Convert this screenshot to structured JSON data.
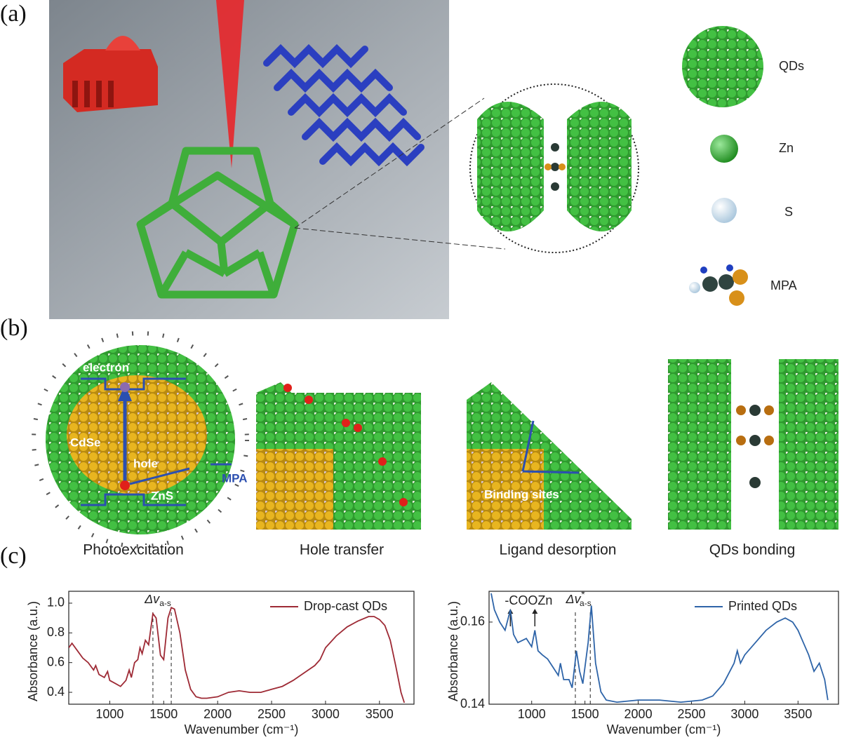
{
  "panel_labels": [
    "(a)",
    "(b)",
    "(c)"
  ],
  "panel_a": {
    "legend": [
      "QDs",
      "Zn",
      "S",
      "MPA"
    ]
  },
  "panel_b": {
    "labels": {
      "electron": "electron",
      "core": "CdSe",
      "hole": "hole",
      "ligand": "MPA",
      "shell": "ZnS",
      "sites": "Binding sites"
    },
    "captions": [
      "Photoexcitation",
      "Hole transfer",
      "Ligand desorption",
      "QDs bonding"
    ]
  },
  "chart_data": [
    {
      "type": "line",
      "xlabel": "Wavenumber (cm⁻¹)",
      "ylabel": "Absorbance (a.u.)",
      "xlim": [
        620,
        3820
      ],
      "ylim": [
        0.32,
        1.08
      ],
      "xticks": [
        1000,
        1500,
        2000,
        2500,
        3000,
        3500
      ],
      "yticks": [
        0.4,
        0.6,
        0.8,
        {
          "value": 1,
          "label": "1.0"
        }
      ],
      "legend": "upper right",
      "annotation": {
        "text": "Δv",
        "sub": "a-s"
      },
      "markers": [
        1400,
        1570
      ],
      "x": [
        620,
        650,
        700,
        750,
        800,
        850,
        870,
        900,
        950,
        980,
        1000,
        1050,
        1100,
        1150,
        1180,
        1200,
        1230,
        1260,
        1280,
        1300,
        1330,
        1360,
        1400,
        1430,
        1470,
        1500,
        1540,
        1570,
        1600,
        1650,
        1700,
        1750,
        1800,
        1850,
        1900,
        2000,
        2100,
        2200,
        2300,
        2400,
        2500,
        2600,
        2700,
        2800,
        2900,
        2950,
        3000,
        3100,
        3200,
        3300,
        3400,
        3450,
        3500,
        3550,
        3600,
        3650,
        3700,
        3730
      ],
      "series": [
        {
          "name": "Drop-cast QDs",
          "color": "#9e2a35",
          "values": [
            0.7,
            0.73,
            0.68,
            0.63,
            0.6,
            0.55,
            0.58,
            0.52,
            0.5,
            0.54,
            0.48,
            0.46,
            0.44,
            0.48,
            0.55,
            0.5,
            0.6,
            0.62,
            0.7,
            0.66,
            0.75,
            0.72,
            0.93,
            0.9,
            0.65,
            0.62,
            0.9,
            0.97,
            0.96,
            0.8,
            0.55,
            0.42,
            0.37,
            0.36,
            0.36,
            0.37,
            0.4,
            0.41,
            0.4,
            0.4,
            0.42,
            0.44,
            0.48,
            0.53,
            0.58,
            0.62,
            0.7,
            0.78,
            0.84,
            0.88,
            0.91,
            0.91,
            0.89,
            0.85,
            0.75,
            0.58,
            0.4,
            0.33
          ]
        }
      ]
    },
    {
      "type": "line",
      "xlabel": "Wavenumber (cm⁻¹)",
      "ylabel": "Absorbance (a.u.)",
      "xlim": [
        600,
        3880
      ],
      "ylim": [
        0.14,
        0.1675
      ],
      "xticks": [
        1000,
        1500,
        2000,
        2500,
        3000,
        3500
      ],
      "yticks": [
        0.14,
        0.16
      ],
      "legend": "upper right",
      "annotation": {
        "text": "Δv",
        "sup": "*",
        "sub": "a-s"
      },
      "arrow_text": "-COOZn",
      "arrows": [
        800,
        1030
      ],
      "markers": [
        1410,
        1550
      ],
      "x": [
        620,
        650,
        700,
        750,
        800,
        830,
        870,
        950,
        1000,
        1030,
        1060,
        1100,
        1150,
        1200,
        1250,
        1270,
        1300,
        1350,
        1380,
        1420,
        1450,
        1480,
        1530,
        1560,
        1600,
        1650,
        1700,
        1800,
        2000,
        2200,
        2400,
        2600,
        2700,
        2800,
        2900,
        2930,
        2960,
        3000,
        3100,
        3200,
        3300,
        3380,
        3450,
        3500,
        3550,
        3600,
        3650,
        3700,
        3750,
        3780
      ],
      "series": [
        {
          "name": "Printed QDs",
          "color": "#2e64a8",
          "values": [
            0.167,
            0.163,
            0.16,
            0.158,
            0.163,
            0.157,
            0.155,
            0.156,
            0.154,
            0.158,
            0.153,
            0.152,
            0.151,
            0.149,
            0.147,
            0.15,
            0.146,
            0.146,
            0.144,
            0.153,
            0.148,
            0.145,
            0.155,
            0.164,
            0.15,
            0.143,
            0.141,
            0.1405,
            0.141,
            0.141,
            0.1405,
            0.141,
            0.142,
            0.145,
            0.15,
            0.153,
            0.15,
            0.152,
            0.155,
            0.158,
            0.16,
            0.161,
            0.16,
            0.158,
            0.155,
            0.152,
            0.148,
            0.15,
            0.146,
            0.141
          ]
        }
      ]
    }
  ]
}
